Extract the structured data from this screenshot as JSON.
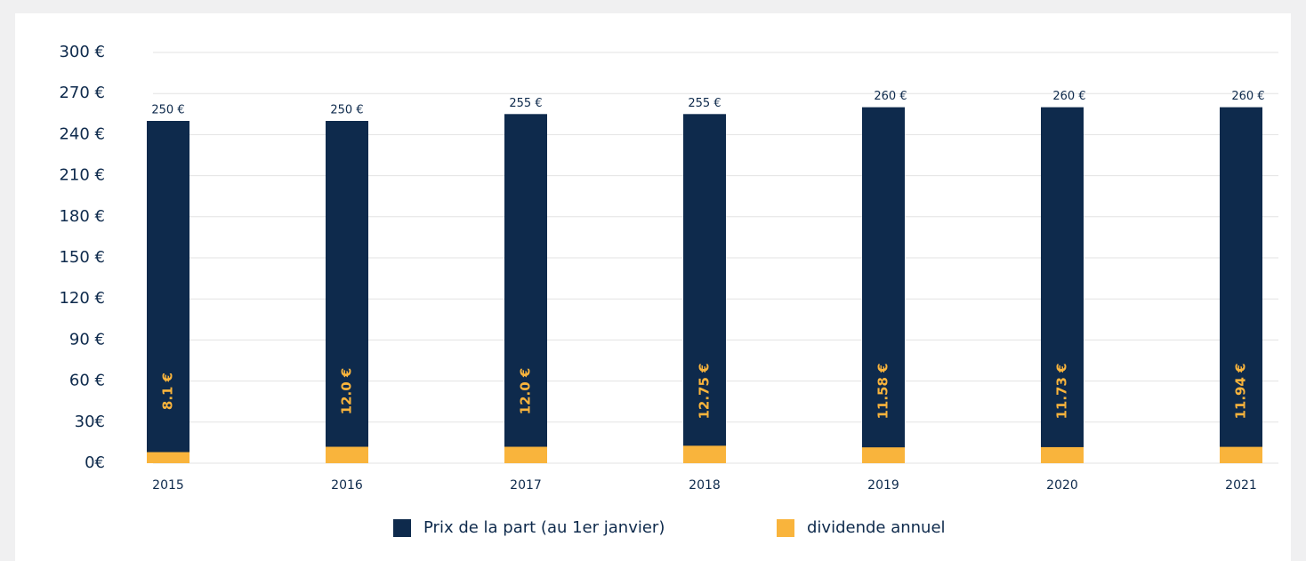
{
  "chart_data": {
    "type": "bar",
    "categories": [
      "2015",
      "2016",
      "2017",
      "2018",
      "2019",
      "2020",
      "2021"
    ],
    "series": [
      {
        "name": "Prix de la part (au 1er janvier)",
        "color": "#0e2a4c",
        "values": [
          250,
          250,
          255,
          255,
          260,
          260,
          260
        ],
        "value_labels": [
          "250 €",
          "250 €",
          "255 €",
          "255 €",
          "260 €",
          "260 €",
          "260 €"
        ]
      },
      {
        "name": "dividende annuel",
        "color": "#f9b43c",
        "values": [
          8.1,
          12,
          12,
          12.75,
          11.58,
          11.73,
          11.94
        ],
        "value_labels": [
          "8.1 €",
          "12.0 €",
          "12.0 €",
          "12.75 €",
          "11.58 €",
          "11.73 €",
          "11.94 €"
        ]
      }
    ],
    "ylim": [
      0,
      300
    ],
    "yticks": [
      {
        "value": 0,
        "label": "0€"
      },
      {
        "value": 30,
        "label": "30€"
      },
      {
        "value": 60,
        "label": "60 €"
      },
      {
        "value": 90,
        "label": "90 €"
      },
      {
        "value": 120,
        "label": "120 €"
      },
      {
        "value": 150,
        "label": "150 €"
      },
      {
        "value": 180,
        "label": "180 €"
      },
      {
        "value": 210,
        "label": "210 €"
      },
      {
        "value": 240,
        "label": "240 €"
      },
      {
        "value": 270,
        "label": "270 €"
      },
      {
        "value": 300,
        "label": "300 €"
      }
    ],
    "grid": true,
    "legend": "bottom"
  }
}
